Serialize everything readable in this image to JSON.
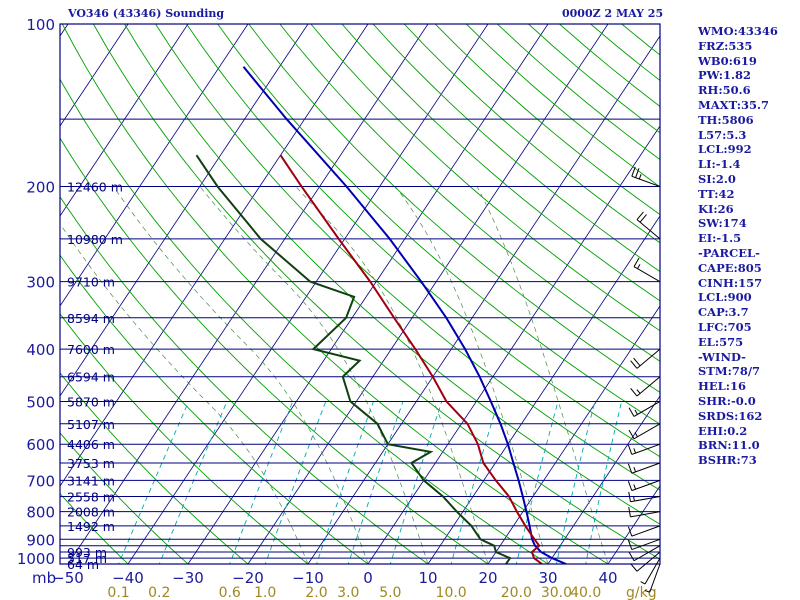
{
  "header": {
    "station": "VO346 (43346) Sounding",
    "datetime": "0000Z  2 MAY 25"
  },
  "indices": [
    "WMO:43346",
    "FRZ:535",
    "WB0:619",
    "PW:1.82",
    "RH:50.6",
    "MAXT:35.7",
    "TH:5806",
    "L57:5.3",
    "LCL:992",
    "LI:-1.4",
    "SI:2.0",
    "TT:42",
    "KI:26",
    "SW:174",
    "EI:-1.5",
    "-PARCEL-",
    "CAPE:805",
    "CINH:157",
    "LCL:900",
    "CAP:3.7",
    "LFC:705",
    "EL:575",
    "-WIND-",
    "STM:78/7",
    "HEL:16",
    "SHR:-0.0",
    "SRDS:162",
    "EHI:0.2",
    "BRN:11.0",
    "BSHR:73"
  ],
  "colors": {
    "text": "#1a1aa0",
    "isobar": "#000080",
    "frame": "#000080",
    "skewT": "#000080",
    "dryAdiabat": "#00a000",
    "moistAdiabat": "#4a8a4a",
    "mixingRatio": "#00aaaa",
    "temperature": "#a00010",
    "dewpoint": "#104010",
    "parcel": "#0000b0",
    "wind": "#000000"
  },
  "chart_data": {
    "type": "skew-T log-P sounding",
    "pressure_axis": {
      "unit": "mb",
      "ylim": [
        1000,
        100
      ],
      "ticks": [
        100,
        200,
        300,
        400,
        500,
        600,
        700,
        800,
        900,
        1000
      ],
      "log_scale": true
    },
    "temperature_axis": {
      "unit": "°C",
      "ticks": [
        -50,
        -40,
        -30,
        -20,
        -10,
        0,
        10,
        20,
        30,
        40
      ],
      "labels": [
        "−50",
        "−40",
        "−30",
        "−20",
        "−10",
        "0",
        "10",
        "20",
        "30",
        "40"
      ]
    },
    "mixing_ratio_axis": {
      "unit": "g/kg",
      "ticks": [
        0.1,
        0.2,
        0.6,
        1.0,
        2.0,
        3.0,
        5.0,
        10.0,
        20.0,
        30.0,
        40.0
      ],
      "labels": [
        "0.1",
        "0.2",
        "0.6",
        "1.0",
        "2.0",
        "3.0",
        "5.0",
        "10.0",
        "20.0",
        "30.0",
        "40.0"
      ]
    },
    "axis_unit_label": "mb",
    "mixing_ratio_unit_label": "g/kg",
    "height_labels": [
      {
        "p": 1000,
        "label": "64 m"
      },
      {
        "p": 975,
        "label": "517 m"
      },
      {
        "p": 950,
        "label": "993 m"
      },
      {
        "p": 850,
        "label": "1492 m"
      },
      {
        "p": 800,
        "label": "2008 m"
      },
      {
        "p": 750,
        "label": "2558 m"
      },
      {
        "p": 700,
        "label": "3141 m"
      },
      {
        "p": 650,
        "label": "3753 m"
      },
      {
        "p": 600,
        "label": "4406 m"
      },
      {
        "p": 550,
        "label": "5107 m"
      },
      {
        "p": 500,
        "label": "5870 m"
      },
      {
        "p": 450,
        "label": "6594 m"
      },
      {
        "p": 400,
        "label": "7600 m"
      },
      {
        "p": 350,
        "label": "8594 m"
      },
      {
        "p": 300,
        "label": "9710 m"
      },
      {
        "p": 250,
        "label": "10980 m"
      },
      {
        "p": 200,
        "label": "12460 m"
      }
    ],
    "temperature_profile": [
      {
        "p": 1000,
        "t": 29
      },
      {
        "p": 975,
        "t": 27
      },
      {
        "p": 950,
        "t": 26
      },
      {
        "p": 925,
        "t": 26.5
      },
      {
        "p": 900,
        "t": 25
      },
      {
        "p": 850,
        "t": 22
      },
      {
        "p": 800,
        "t": 19
      },
      {
        "p": 750,
        "t": 16
      },
      {
        "p": 700,
        "t": 12
      },
      {
        "p": 650,
        "t": 8
      },
      {
        "p": 600,
        "t": 5
      },
      {
        "p": 550,
        "t": 1
      },
      {
        "p": 500,
        "t": -5
      },
      {
        "p": 450,
        "t": -10
      },
      {
        "p": 400,
        "t": -16
      },
      {
        "p": 350,
        "t": -23
      },
      {
        "p": 300,
        "t": -31
      },
      {
        "p": 250,
        "t": -41
      },
      {
        "p": 200,
        "t": -53
      },
      {
        "p": 175,
        "t": -60
      }
    ],
    "dewpoint_profile": [
      {
        "p": 1000,
        "t": 23
      },
      {
        "p": 975,
        "t": 23
      },
      {
        "p": 950,
        "t": 20
      },
      {
        "p": 925,
        "t": 19
      },
      {
        "p": 900,
        "t": 16
      },
      {
        "p": 850,
        "t": 13
      },
      {
        "p": 800,
        "t": 9
      },
      {
        "p": 750,
        "t": 5
      },
      {
        "p": 700,
        "t": 0
      },
      {
        "p": 650,
        "t": -4
      },
      {
        "p": 620,
        "t": -2
      },
      {
        "p": 600,
        "t": -10
      },
      {
        "p": 550,
        "t": -14
      },
      {
        "p": 500,
        "t": -21
      },
      {
        "p": 450,
        "t": -25
      },
      {
        "p": 420,
        "t": -24
      },
      {
        "p": 400,
        "t": -33
      },
      {
        "p": 350,
        "t": -31
      },
      {
        "p": 320,
        "t": -32
      },
      {
        "p": 300,
        "t": -41
      },
      {
        "p": 250,
        "t": -54
      },
      {
        "p": 200,
        "t": -67
      },
      {
        "p": 175,
        "t": -74
      }
    ],
    "parcel_profile": [
      {
        "p": 1000,
        "t": 33
      },
      {
        "p": 975,
        "t": 30
      },
      {
        "p": 950,
        "t": 27.5
      },
      {
        "p": 925,
        "t": 25.8
      },
      {
        "p": 900,
        "t": 24.6
      },
      {
        "p": 850,
        "t": 22.7
      },
      {
        "p": 800,
        "t": 20.6
      },
      {
        "p": 750,
        "t": 18.3
      },
      {
        "p": 700,
        "t": 15.8
      },
      {
        "p": 650,
        "t": 13
      },
      {
        "p": 600,
        "t": 10
      },
      {
        "p": 550,
        "t": 6.5
      },
      {
        "p": 500,
        "t": 2.4
      },
      {
        "p": 450,
        "t": -2.2
      },
      {
        "p": 400,
        "t": -7.7
      },
      {
        "p": 350,
        "t": -14.3
      },
      {
        "p": 300,
        "t": -22.5
      },
      {
        "p": 250,
        "t": -32.5
      },
      {
        "p": 200,
        "t": -45.5
      },
      {
        "p": 150,
        "t": -63
      },
      {
        "p": 120,
        "t": -76
      }
    ],
    "wind_barbs": [
      {
        "p": 1000,
        "dir": 200,
        "spd": 5
      },
      {
        "p": 975,
        "dir": 210,
        "spd": 5
      },
      {
        "p": 950,
        "dir": 230,
        "spd": 10
      },
      {
        "p": 925,
        "dir": 240,
        "spd": 10
      },
      {
        "p": 900,
        "dir": 250,
        "spd": 10
      },
      {
        "p": 850,
        "dir": 250,
        "spd": 10
      },
      {
        "p": 800,
        "dir": 260,
        "spd": 10
      },
      {
        "p": 750,
        "dir": 260,
        "spd": 15
      },
      {
        "p": 700,
        "dir": 250,
        "spd": 15
      },
      {
        "p": 650,
        "dir": 250,
        "spd": 15
      },
      {
        "p": 600,
        "dir": 250,
        "spd": 15
      },
      {
        "p": 550,
        "dir": 240,
        "spd": 15
      },
      {
        "p": 500,
        "dir": 240,
        "spd": 15
      },
      {
        "p": 450,
        "dir": 230,
        "spd": 15
      },
      {
        "p": 400,
        "dir": 230,
        "spd": 20
      },
      {
        "p": 300,
        "dir": 300,
        "spd": 15
      },
      {
        "p": 250,
        "dir": 310,
        "spd": 20
      },
      {
        "p": 200,
        "dir": 290,
        "spd": 25
      }
    ]
  }
}
